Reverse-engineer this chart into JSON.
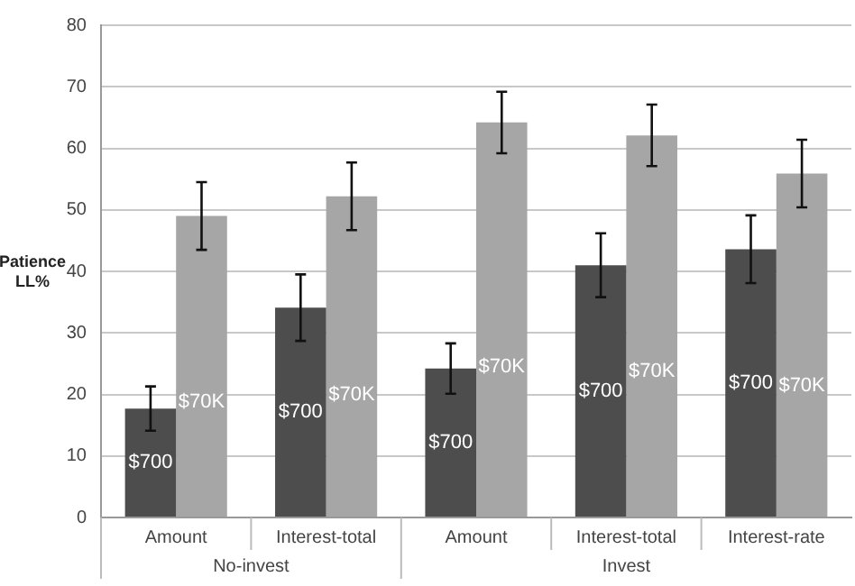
{
  "chart_data": {
    "type": "bar",
    "ylabel": "Patience LL%",
    "categories": [
      "Amount",
      "Interest-total",
      "Amount",
      "Interest-total",
      "Interest-rate"
    ],
    "series": [
      {
        "name": "$700",
        "color": "#4d4d4d",
        "values": [
          17.7,
          34.1,
          24.2,
          41.0,
          43.6
        ],
        "errors": [
          3.6,
          5.4,
          4.1,
          5.2,
          5.5
        ]
      },
      {
        "name": "$70K",
        "color": "#a6a6a6",
        "values": [
          49.0,
          52.2,
          64.2,
          62.1,
          55.9
        ],
        "errors": [
          5.5,
          5.5,
          5.0,
          5.0,
          5.5
        ]
      }
    ],
    "annotations": [
      "No-invest",
      "Invest"
    ],
    "ylim": [
      0,
      80
    ],
    "yticks": [
      0,
      10,
      20,
      30,
      40,
      50,
      60,
      70,
      80
    ],
    "grid": "y",
    "legend": false
  }
}
